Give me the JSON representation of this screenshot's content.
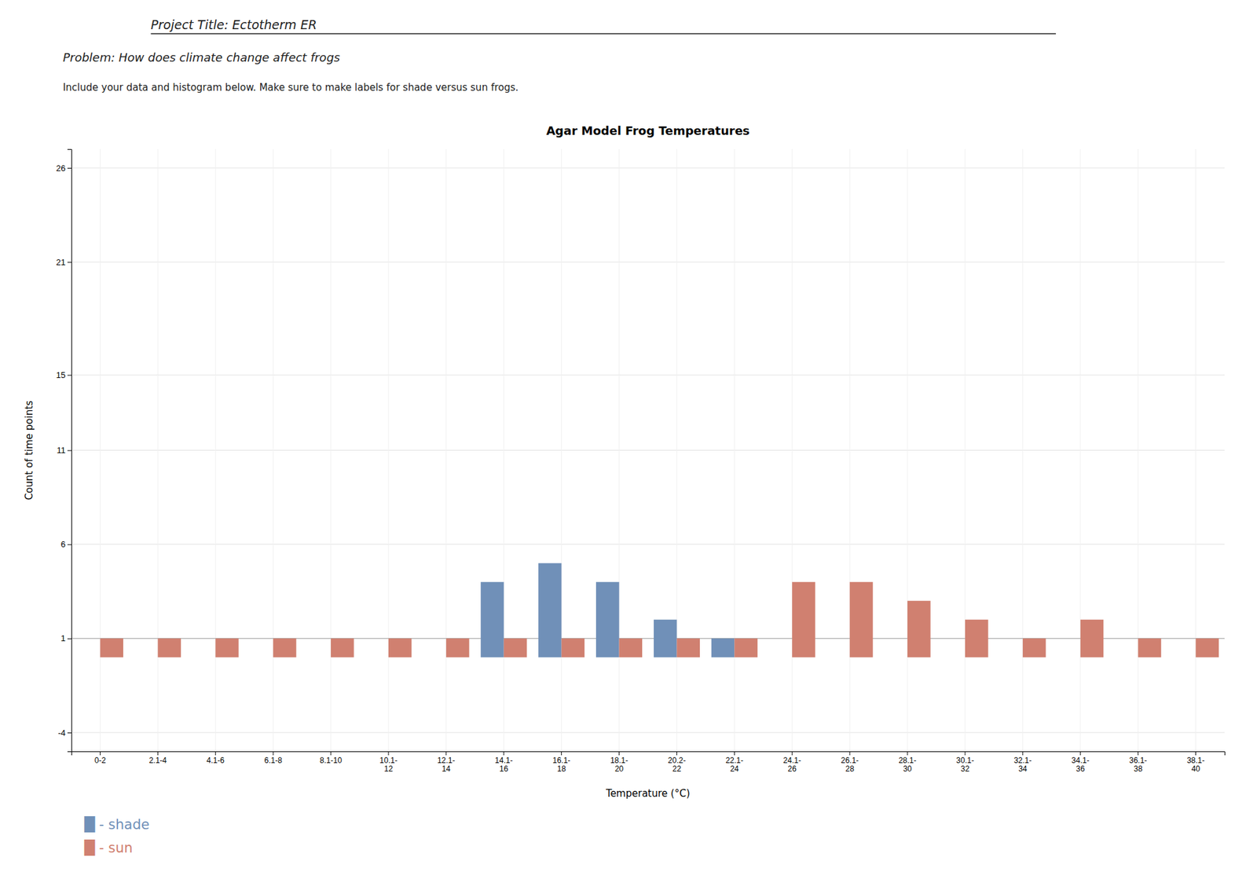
{
  "chart_data": {
    "type": "bar",
    "title": "Agar Model Frog Temperatures",
    "x_label": "Temperature (°C)",
    "y_label": "Count of time points",
    "annotations": [
      "Project Title: Ectotherm ER",
      "Problem:  How does climate change affect frogs",
      "Include your data and histogram below. Make sure to make labels for shade versus sun frogs."
    ],
    "categories": [
      "0-2",
      "2.1-4",
      "4.1-6",
      "6.1-8",
      "8.1-10",
      "10.1-\n12",
      "12.1-\n14",
      "14.1-\n16",
      "16.1-\n18",
      "18.1-\n20",
      "20.2-\n22",
      "22.1-\n24",
      "24.1-\n26",
      "26.1-\n28",
      "28.1-\n30",
      "30.1-\n32",
      "32.1-\n34",
      "34.1-\n36",
      "36.1-\n38",
      "38.1-\n40"
    ],
    "series": [
      {
        "name": "█ - shade",
        "color": "#7090b8",
        "values": [
          0,
          0,
          0,
          0,
          0,
          0,
          0,
          4,
          5,
          4,
          2,
          1,
          0,
          0,
          0,
          0,
          0,
          0,
          0,
          0
        ]
      },
      {
        "name": "█ - sun",
        "color": "#d08070",
        "values": [
          1,
          1,
          1,
          1,
          1,
          1,
          1,
          1,
          1,
          1,
          1,
          1,
          4,
          4,
          3,
          2,
          1,
          2,
          1,
          1
        ]
      }
    ],
    "reference_line": 1,
    "ylim": [
      -5,
      27
    ],
    "yticks": [
      -4,
      1,
      6,
      11,
      15,
      21,
      26
    ],
    "grid": true,
    "legend": "lower left"
  }
}
